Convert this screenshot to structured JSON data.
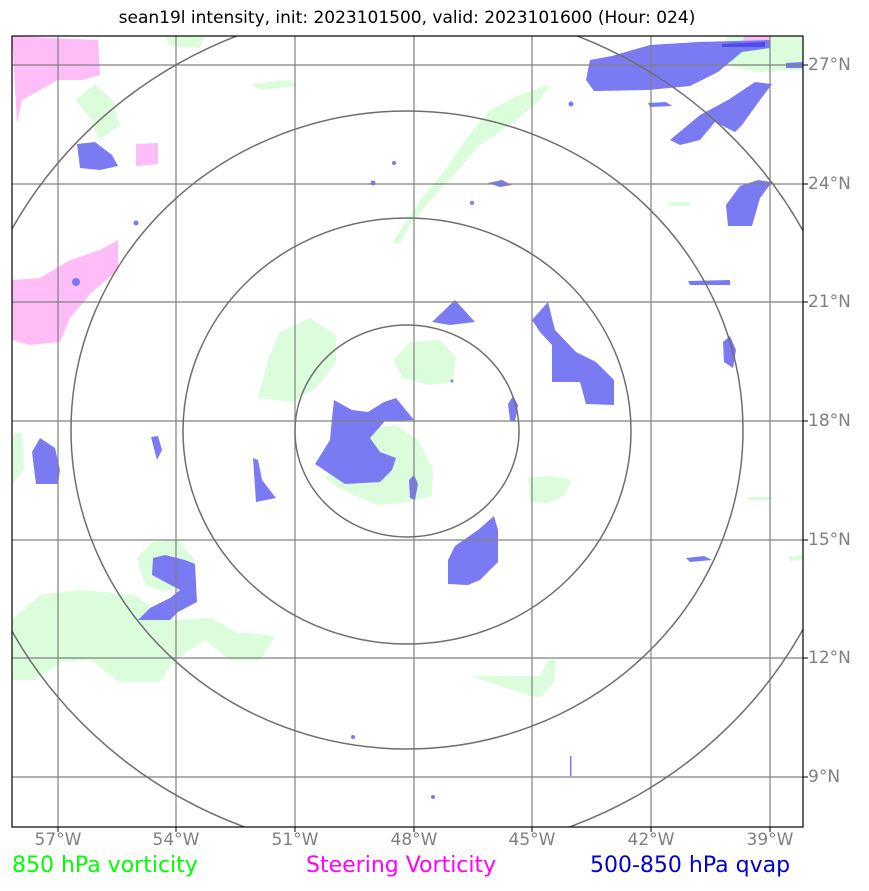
{
  "title": "sean19l intensity, init: 2023101500, valid: 2023101600 (Hour: 024)",
  "lat_labels": [
    "27°N",
    "24°N",
    "21°N",
    "18°N",
    "15°N",
    "12°N",
    "9°N"
  ],
  "lon_labels": [
    "57°W",
    "54°W",
    "51°W",
    "48°W",
    "45°W",
    "42°W",
    "39°W"
  ],
  "legend": {
    "vort850": {
      "label": "850 hPa vorticity",
      "color": "#00ff00"
    },
    "steering": {
      "label": "Steering Vorticity",
      "color": "#ff00ff"
    },
    "qvap": {
      "label": "500-850 hPa qvap",
      "color": "#0000cc"
    }
  },
  "colors": {
    "gridline": "#808080",
    "range_ring": "#6e6e6e",
    "vort_fill": "#dcfddc",
    "steer_fill": "#ffbdf7",
    "qvap_fill": "#7373f2"
  }
}
